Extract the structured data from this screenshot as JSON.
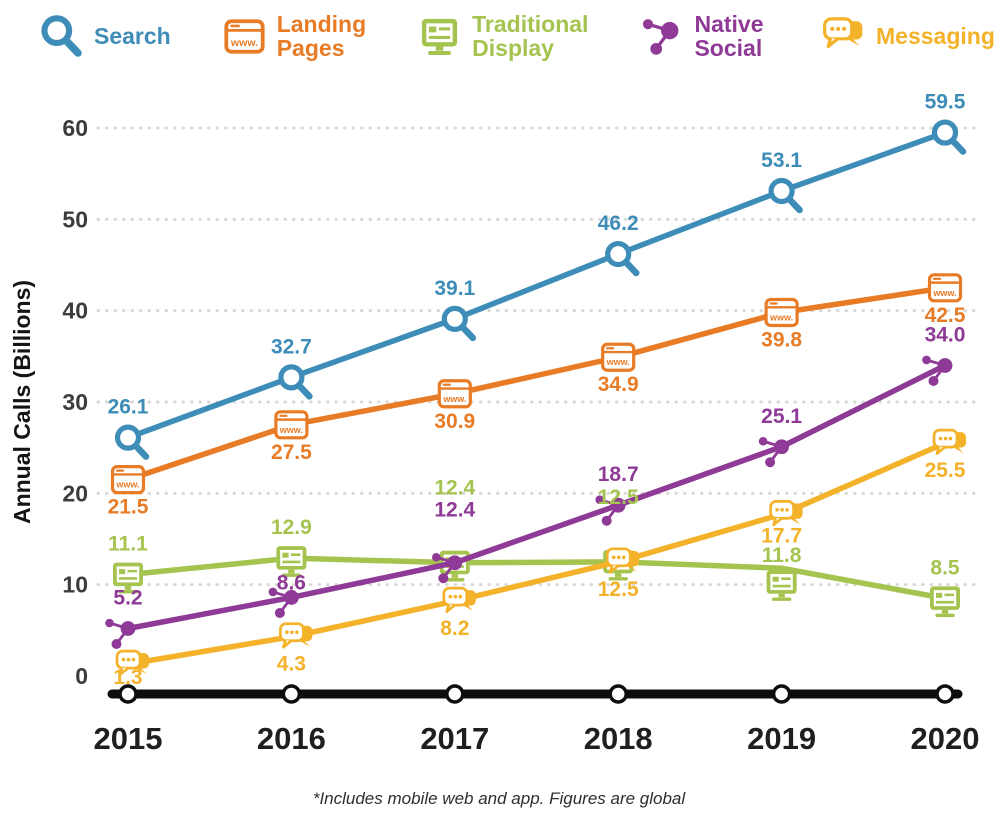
{
  "chart_data": {
    "type": "line",
    "ylabel": "Annual Calls (Billions)",
    "footnote": "*Includes mobile web and app. Figures are global",
    "categories": [
      "2015",
      "2016",
      "2017",
      "2018",
      "2019",
      "2020"
    ],
    "ylim": [
      0,
      60
    ],
    "yticks": [
      0,
      10,
      20,
      30,
      40,
      50,
      60
    ],
    "grid": "dotted-horizontal",
    "legend_position": "top",
    "axis_color": "#0d0d0d",
    "grid_color": "#d8d8d8",
    "series": [
      {
        "name": "Search",
        "icon": "search",
        "color": "#3d8db8",
        "values": [
          26.1,
          32.7,
          39.1,
          46.2,
          53.1,
          59.5
        ],
        "label_side": "above"
      },
      {
        "name": "Landing Pages",
        "icon": "landing-pages",
        "color": "#e87b25",
        "values": [
          21.5,
          27.5,
          30.9,
          34.9,
          39.8,
          42.5
        ],
        "label_side": "below"
      },
      {
        "name": "Traditional Display",
        "icon": "display",
        "color": "#a5c44f",
        "values": [
          11.1,
          12.9,
          12.4,
          12.5,
          11.8,
          8.5
        ],
        "label_side": "above",
        "label_dy": [
          0,
          0,
          -44,
          -34,
          18,
          0
        ],
        "marker_dy": [
          0,
          0,
          0,
          0,
          14,
          0
        ]
      },
      {
        "name": "Native Social",
        "icon": "social",
        "color": "#8e3a96",
        "values": [
          5.2,
          8.6,
          12.4,
          18.7,
          25.1,
          34.0
        ],
        "label_side": "above",
        "label_dy": [
          0,
          16,
          -22,
          0,
          0,
          0
        ]
      },
      {
        "name": "Messaging",
        "icon": "messaging",
        "color": "#f3b229",
        "values": [
          1.3,
          4.3,
          8.2,
          12.5,
          17.7,
          25.5
        ],
        "label_side": "below",
        "label_dy": [
          -14,
          0,
          0,
          0,
          -6,
          0
        ]
      }
    ]
  }
}
